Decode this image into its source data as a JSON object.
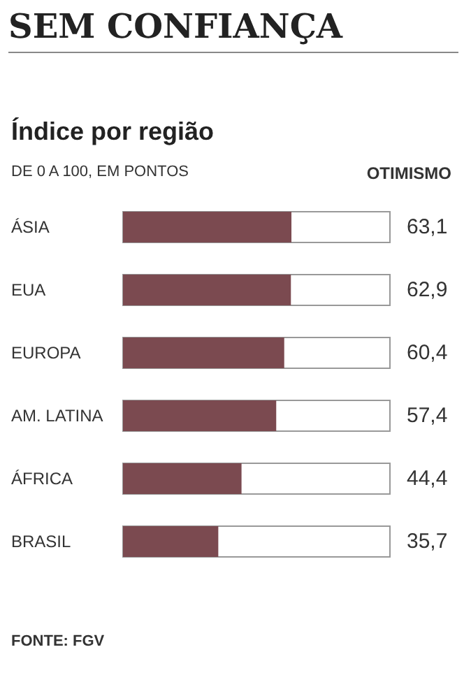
{
  "chart_data": {
    "type": "bar",
    "orientation": "horizontal",
    "title": "SEM CONFIANÇA",
    "subtitle": "Índice por região",
    "annotations": [
      "DE 0 A 100, EM PONTOS",
      "OTIMISMO",
      "FONTE: FGV"
    ],
    "categories": [
      "ÁSIA",
      "EUA",
      "EUROPA",
      "AM. LATINA",
      "ÁFRICA",
      "BRASIL"
    ],
    "values": [
      63.1,
      62.9,
      60.4,
      57.4,
      44.4,
      35.7
    ],
    "value_labels": [
      "63,1",
      "62,9",
      "60,4",
      "57,4",
      "44,4",
      "35,7"
    ],
    "color": "#7b4a50",
    "xlim": [
      0,
      100
    ]
  }
}
